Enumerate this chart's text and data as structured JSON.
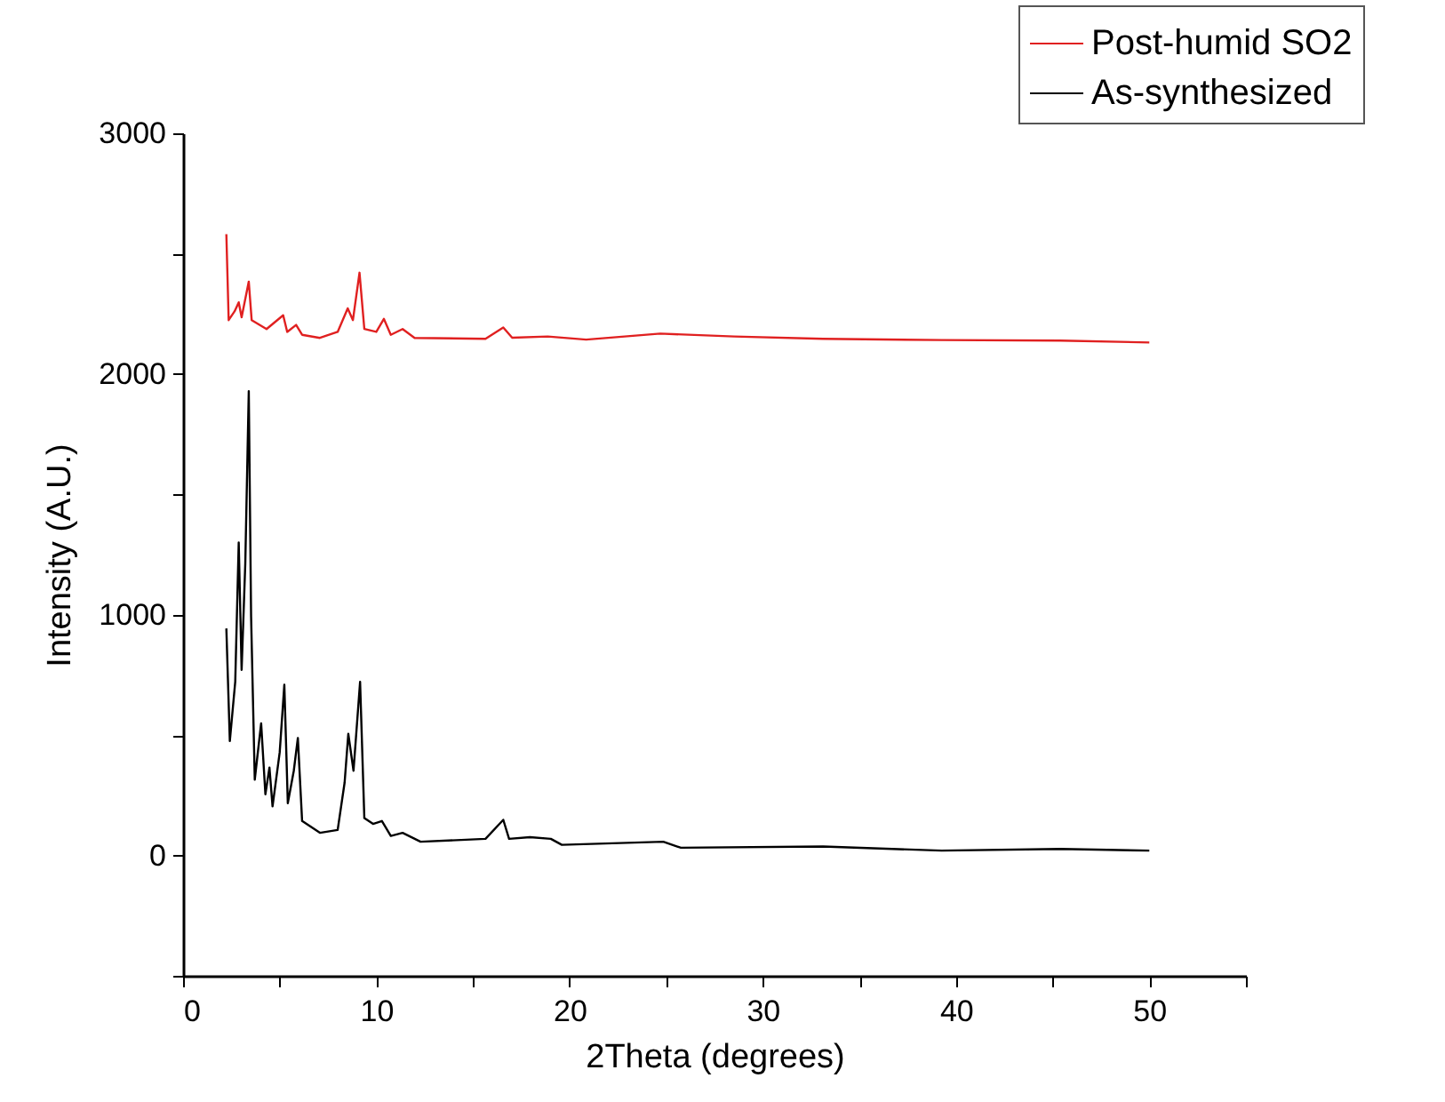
{
  "chart_data": {
    "type": "line",
    "xlabel": "2Theta (degrees)",
    "ylabel": "Intensity (A.U.)",
    "xlim": [
      0,
      55
    ],
    "xticks": [
      0,
      {
        "value": 5,
        "label": null
      },
      10,
      {
        "value": 15,
        "label": null
      },
      20,
      {
        "value": 25,
        "label": null
      },
      30,
      {
        "value": 35,
        "label": null
      },
      40,
      {
        "value": 45,
        "label": null
      },
      50,
      {
        "value": 55,
        "label": null
      }
    ],
    "ylim": [
      -500,
      3000
    ],
    "yticks": [
      {
        "value": -500,
        "label": null
      },
      0,
      {
        "value": 500,
        "label": null
      },
      1000,
      {
        "value": 1500,
        "label": null
      },
      2000,
      {
        "value": 2500,
        "label": null
      },
      3000
    ],
    "grid": false,
    "legend": "top right",
    "series": [
      {
        "name": "Post-humid SO2",
        "color": "#e02020",
        "x": [
          2.24,
          2.36,
          2.67,
          2.88,
          3.03,
          3.4,
          3.55,
          4.32,
          5.18,
          5.39,
          5.85,
          6.16,
          7.08,
          8.0,
          8.52,
          8.79,
          9.13,
          9.38,
          10.0,
          10.39,
          10.75,
          11.36,
          11.98,
          15.65,
          16.57,
          17.03,
          18.87,
          20.86,
          24.69,
          28.52,
          33.12,
          39.25,
          45.4,
          50
        ],
        "values": [
          2581,
          2224,
          2261,
          2298,
          2236,
          2384,
          2224,
          2187,
          2244,
          2175,
          2204,
          2163,
          2150,
          2175,
          2273,
          2224,
          2421,
          2187,
          2175,
          2229,
          2163,
          2187,
          2150,
          2146,
          2193,
          2151,
          2156,
          2143,
          2168,
          2156,
          2146,
          2141,
          2139,
          2131
        ]
      },
      {
        "name": "As-synthesized",
        "color": "#000000",
        "x": [
          2.24,
          2.42,
          2.7,
          2.88,
          3.03,
          3.22,
          3.4,
          3.52,
          3.71,
          4.04,
          4.26,
          4.47,
          4.63,
          5.0,
          5.24,
          5.42,
          5.73,
          5.94,
          6.16,
          7.08,
          8.0,
          8.36,
          8.55,
          8.82,
          9.16,
          9.38,
          9.83,
          10.29,
          10.75,
          11.36,
          12.29,
          15.65,
          16.57,
          16.87,
          17.95,
          19.03,
          19.6,
          24.85,
          25.76,
          33.12,
          39.25,
          45.4,
          50
        ],
        "values": [
          943,
          475,
          722,
          1300,
          771,
          1214,
          1929,
          993,
          315,
          549,
          254,
          365,
          204,
          428,
          709,
          217,
          352,
          488,
          143,
          94,
          106,
          303,
          505,
          352,
          721,
          155,
          131,
          143,
          81,
          94,
          57,
          69,
          148,
          69,
          76,
          69,
          44,
          57,
          32,
          37,
          20,
          27,
          20
        ]
      }
    ]
  }
}
